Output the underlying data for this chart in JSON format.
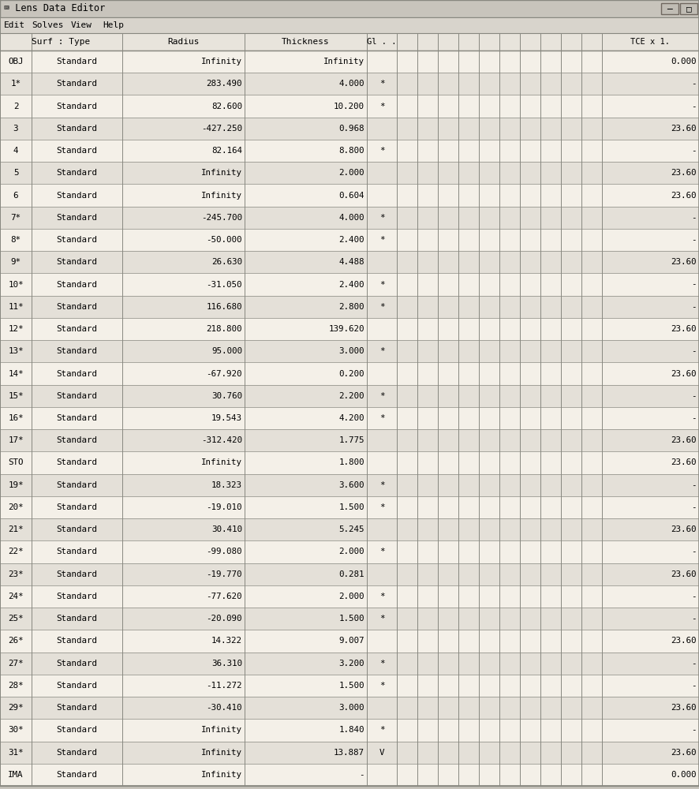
{
  "title_bar": "Lens Data Editor",
  "menu_items": [
    "Edit",
    "Solves",
    "View",
    "Help"
  ],
  "rows": [
    {
      "surf": "OBJ",
      "type": "Standard",
      "radius": "Infinity",
      "thickness": "Infinity",
      "gl": "",
      "tce": "0.000"
    },
    {
      "surf": "1*",
      "type": "Standard",
      "radius": "283.490",
      "thickness": "4.000",
      "gl": "*",
      "tce": "-"
    },
    {
      "surf": "2",
      "type": "Standard",
      "radius": "82.600",
      "thickness": "10.200",
      "gl": "*",
      "tce": "-"
    },
    {
      "surf": "3",
      "type": "Standard",
      "radius": "-427.250",
      "thickness": "0.968",
      "gl": "",
      "tce": "23.60"
    },
    {
      "surf": "4",
      "type": "Standard",
      "radius": "82.164",
      "thickness": "8.800",
      "gl": "*",
      "tce": "-"
    },
    {
      "surf": "5",
      "type": "Standard",
      "radius": "Infinity",
      "thickness": "2.000",
      "gl": "",
      "tce": "23.60"
    },
    {
      "surf": "6",
      "type": "Standard",
      "radius": "Infinity",
      "thickness": "0.604",
      "gl": "",
      "tce": "23.60"
    },
    {
      "surf": "7*",
      "type": "Standard",
      "radius": "-245.700",
      "thickness": "4.000",
      "gl": "*",
      "tce": "-"
    },
    {
      "surf": "8*",
      "type": "Standard",
      "radius": "-50.000",
      "thickness": "2.400",
      "gl": "*",
      "tce": "-"
    },
    {
      "surf": "9*",
      "type": "Standard",
      "radius": "26.630",
      "thickness": "4.488",
      "gl": "",
      "tce": "23.60"
    },
    {
      "surf": "10*",
      "type": "Standard",
      "radius": "-31.050",
      "thickness": "2.400",
      "gl": "*",
      "tce": "-"
    },
    {
      "surf": "11*",
      "type": "Standard",
      "radius": "116.680",
      "thickness": "2.800",
      "gl": "*",
      "tce": "-"
    },
    {
      "surf": "12*",
      "type": "Standard",
      "radius": "218.800",
      "thickness": "139.620",
      "gl": "",
      "tce": "23.60"
    },
    {
      "surf": "13*",
      "type": "Standard",
      "radius": "95.000",
      "thickness": "3.000",
      "gl": "*",
      "tce": "-"
    },
    {
      "surf": "14*",
      "type": "Standard",
      "radius": "-67.920",
      "thickness": "0.200",
      "gl": "",
      "tce": "23.60"
    },
    {
      "surf": "15*",
      "type": "Standard",
      "radius": "30.760",
      "thickness": "2.200",
      "gl": "*",
      "tce": "-"
    },
    {
      "surf": "16*",
      "type": "Standard",
      "radius": "19.543",
      "thickness": "4.200",
      "gl": "*",
      "tce": "-"
    },
    {
      "surf": "17*",
      "type": "Standard",
      "radius": "-312.420",
      "thickness": "1.775",
      "gl": "",
      "tce": "23.60"
    },
    {
      "surf": "STO",
      "type": "Standard",
      "radius": "Infinity",
      "thickness": "1.800",
      "gl": "",
      "tce": "23.60"
    },
    {
      "surf": "19*",
      "type": "Standard",
      "radius": "18.323",
      "thickness": "3.600",
      "gl": "*",
      "tce": "-"
    },
    {
      "surf": "20*",
      "type": "Standard",
      "radius": "-19.010",
      "thickness": "1.500",
      "gl": "*",
      "tce": "-"
    },
    {
      "surf": "21*",
      "type": "Standard",
      "radius": "30.410",
      "thickness": "5.245",
      "gl": "",
      "tce": "23.60"
    },
    {
      "surf": "22*",
      "type": "Standard",
      "radius": "-99.080",
      "thickness": "2.000",
      "gl": "*",
      "tce": "-"
    },
    {
      "surf": "23*",
      "type": "Standard",
      "radius": "-19.770",
      "thickness": "0.281",
      "gl": "",
      "tce": "23.60"
    },
    {
      "surf": "24*",
      "type": "Standard",
      "radius": "-77.620",
      "thickness": "2.000",
      "gl": "*",
      "tce": "-"
    },
    {
      "surf": "25*",
      "type": "Standard",
      "radius": "-20.090",
      "thickness": "1.500",
      "gl": "*",
      "tce": "-"
    },
    {
      "surf": "26*",
      "type": "Standard",
      "radius": "14.322",
      "thickness": "9.007",
      "gl": "",
      "tce": "23.60"
    },
    {
      "surf": "27*",
      "type": "Standard",
      "radius": "36.310",
      "thickness": "3.200",
      "gl": "*",
      "tce": "-"
    },
    {
      "surf": "28*",
      "type": "Standard",
      "radius": "-11.272",
      "thickness": "1.500",
      "gl": "*",
      "tce": "-"
    },
    {
      "surf": "29*",
      "type": "Standard",
      "radius": "-30.410",
      "thickness": "3.000",
      "gl": "",
      "tce": "23.60"
    },
    {
      "surf": "30*",
      "type": "Standard",
      "radius": "Infinity",
      "thickness": "1.840",
      "gl": "*",
      "tce": "-"
    },
    {
      "surf": "31*",
      "type": "Standard",
      "radius": "Infinity",
      "thickness": "13.887",
      "gl": "V",
      "tce": "23.60"
    },
    {
      "surf": "IMA",
      "type": "Standard",
      "radius": "Infinity",
      "thickness": "-",
      "gl": "",
      "tce": "0.000"
    }
  ],
  "bg_color": "#c8c4bc",
  "title_bg": "#c8c4bc",
  "menu_bg": "#d8d4cc",
  "header_bg": "#e8e4dc",
  "row_bg_light": "#f4f0e8",
  "row_bg_dark": "#e4e0d8",
  "border_color": "#888880",
  "grid_color": "#aaa89f",
  "text_color": "#000000",
  "title_font_size": 8.5,
  "menu_font_size": 8.0,
  "header_font_size": 8.0,
  "cell_font_size": 7.8,
  "num_middle_cols": 10
}
